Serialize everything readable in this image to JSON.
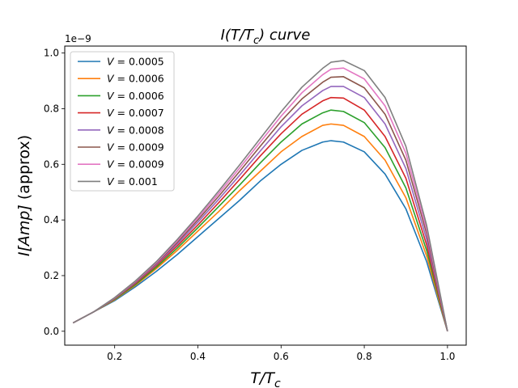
{
  "chart_data": {
    "type": "line",
    "title": "I(T/T_c) curve",
    "title_parts": {
      "main": "I(T/T",
      "sub": "c",
      "tail": ") curve"
    },
    "xlabel": "T/T_c",
    "xlabel_parts": {
      "main": "T/T",
      "sub": "c"
    },
    "ylabel": "I[Amp] (approx)",
    "ylabel_parts": {
      "italic": "I[Amp]",
      "normal": " (approx)"
    },
    "y_offset_text": "1e−9",
    "xlim": [
      0.08,
      1.045
    ],
    "ylim": [
      -0.05,
      1.025
    ],
    "x_ticks": [
      0.2,
      0.4,
      0.6,
      0.8,
      1.0
    ],
    "x_tick_labels": [
      "0.2",
      "0.4",
      "0.6",
      "0.8",
      "1.0"
    ],
    "y_ticks": [
      0.0,
      0.2,
      0.4,
      0.6,
      0.8,
      1.0
    ],
    "y_tick_labels": [
      "0.0",
      "0.2",
      "0.4",
      "0.6",
      "0.8",
      "1.0"
    ],
    "grid": false,
    "legend_position": "upper-left",
    "x": [
      0.1,
      0.15,
      0.2,
      0.25,
      0.3,
      0.35,
      0.4,
      0.45,
      0.5,
      0.55,
      0.6,
      0.65,
      0.7,
      0.72,
      0.75,
      0.8,
      0.85,
      0.9,
      0.95,
      1.0
    ],
    "series": [
      {
        "name": "V = 0.0005",
        "color": "#1f77b4",
        "values": [
          0.03,
          0.07,
          0.11,
          0.16,
          0.215,
          0.275,
          0.34,
          0.405,
          0.47,
          0.54,
          0.6,
          0.65,
          0.68,
          0.685,
          0.68,
          0.645,
          0.565,
          0.44,
          0.25,
          0.0
        ]
      },
      {
        "name": "V = 0.0006",
        "color": "#ff7f0e",
        "values": [
          0.03,
          0.07,
          0.113,
          0.165,
          0.225,
          0.29,
          0.36,
          0.43,
          0.505,
          0.575,
          0.645,
          0.7,
          0.74,
          0.745,
          0.74,
          0.7,
          0.615,
          0.48,
          0.27,
          0.0
        ]
      },
      {
        "name": "V = 0.0006",
        "color": "#2ca02c",
        "values": [
          0.03,
          0.07,
          0.115,
          0.168,
          0.23,
          0.298,
          0.372,
          0.448,
          0.525,
          0.605,
          0.68,
          0.745,
          0.785,
          0.795,
          0.79,
          0.75,
          0.66,
          0.515,
          0.29,
          0.0
        ]
      },
      {
        "name": "V = 0.0007",
        "color": "#d62728",
        "values": [
          0.03,
          0.07,
          0.117,
          0.172,
          0.236,
          0.306,
          0.382,
          0.462,
          0.545,
          0.63,
          0.71,
          0.78,
          0.828,
          0.84,
          0.838,
          0.795,
          0.7,
          0.55,
          0.31,
          0.0
        ]
      },
      {
        "name": "V = 0.0008",
        "color": "#9467bd",
        "values": [
          0.03,
          0.07,
          0.118,
          0.175,
          0.24,
          0.313,
          0.392,
          0.474,
          0.56,
          0.648,
          0.735,
          0.81,
          0.865,
          0.88,
          0.88,
          0.84,
          0.745,
          0.585,
          0.33,
          0.0
        ]
      },
      {
        "name": "V = 0.0009",
        "color": "#8c564b",
        "values": [
          0.03,
          0.07,
          0.119,
          0.177,
          0.244,
          0.319,
          0.4,
          0.485,
          0.574,
          0.665,
          0.755,
          0.835,
          0.895,
          0.913,
          0.915,
          0.875,
          0.78,
          0.615,
          0.35,
          0.0
        ]
      },
      {
        "name": "V = 0.0009",
        "color": "#e377c2",
        "values": [
          0.03,
          0.07,
          0.12,
          0.179,
          0.247,
          0.324,
          0.407,
          0.495,
          0.586,
          0.68,
          0.773,
          0.857,
          0.922,
          0.942,
          0.946,
          0.907,
          0.81,
          0.64,
          0.365,
          0.0
        ]
      },
      {
        "name": "V = 0.001",
        "color": "#7f7f7f",
        "values": [
          0.03,
          0.07,
          0.121,
          0.181,
          0.25,
          0.329,
          0.414,
          0.504,
          0.597,
          0.693,
          0.789,
          0.877,
          0.945,
          0.967,
          0.973,
          0.937,
          0.84,
          0.665,
          0.38,
          0.0
        ]
      }
    ]
  }
}
